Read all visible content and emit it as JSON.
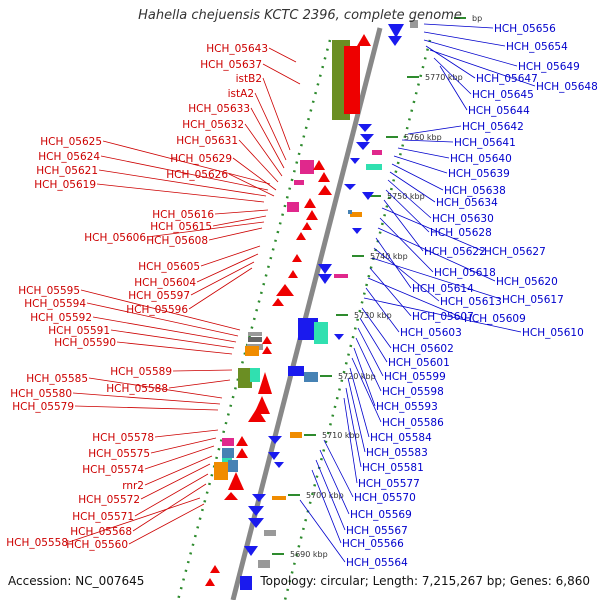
{
  "title": "Hahella chejuensis KCTC 2396, complete genome",
  "accession": "Accession: NC_007645",
  "summary": "Topology: circular; Length: 7,215,267 bp; Genes: 6,860",
  "colors": {
    "forward_label": "#cc0000",
    "reverse_label": "#0000cc",
    "forward_gene": "#ee0000",
    "reverse_gene": "#1a1aee",
    "axis": "#888888",
    "tick": "#2e8b2e",
    "magenta": "#e0288c",
    "green": "#6b8e23",
    "cyan": "#30e0b0",
    "orange": "#f08c00",
    "steel": "#4682b4",
    "gray": "#999999"
  },
  "scale_marks": [
    "5690 kbp",
    "5700 kbp",
    "5710 kbp",
    "5720 kbp",
    "5730 kbp",
    "5740 kbp",
    "5750 kbp",
    "5760 kbp",
    "5770 kbp",
    "bp"
  ],
  "forward_labels": [
    "HCH_05643",
    "HCH_05637",
    "istB2",
    "istA2",
    "HCH_05633",
    "HCH_05632",
    "HCH_05631",
    "HCH_05629",
    "HCH_05626",
    "HCH_05625",
    "HCH_05624",
    "HCH_05621",
    "HCH_05619",
    "HCH_05616",
    "HCH_05615",
    "HCH_05606",
    "HCH_05608",
    "HCH_05605",
    "HCH_05604",
    "HCH_05597",
    "HCH_05596",
    "HCH_05595",
    "HCH_05594",
    "HCH_05592",
    "HCH_05591",
    "HCH_05590",
    "HCH_05589",
    "HCH_05588",
    "HCH_05585",
    "HCH_05580",
    "HCH_05579",
    "HCH_05578",
    "HCH_05575",
    "HCH_05574",
    "rnr2",
    "HCH_05572",
    "HCH_05571",
    "HCH_05568",
    "HCH_05558",
    "HCH_05560"
  ],
  "reverse_labels": [
    "HCH_05656",
    "HCH_05654",
    "HCH_05649",
    "HCH_05647",
    "HCH_05648",
    "HCH_05645",
    "HCH_05644",
    "HCH_05642",
    "HCH_05641",
    "HCH_05640",
    "HCH_05639",
    "HCH_05638",
    "HCH_05634",
    "HCH_05630",
    "HCH_05628",
    "HCH_05622",
    "HCH_05627",
    "HCH_05618",
    "HCH_05620",
    "HCH_05614",
    "HCH_05613",
    "HCH_05617",
    "HCH_05607",
    "HCH_05609",
    "HCH_05603",
    "HCH_05610",
    "HCH_05602",
    "HCH_05601",
    "HCH_05599",
    "HCH_05598",
    "HCH_05593",
    "HCH_05586",
    "HCH_05584",
    "HCH_05583",
    "HCH_05581",
    "HCH_05577",
    "HCH_05570",
    "HCH_05569",
    "HCH_05567",
    "HCH_05566",
    "HCH_05564"
  ]
}
